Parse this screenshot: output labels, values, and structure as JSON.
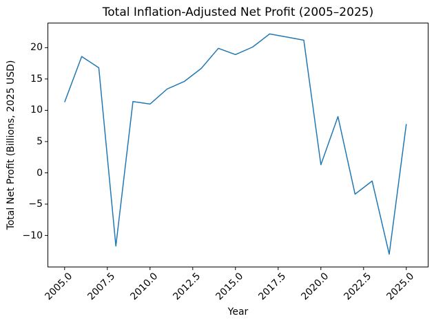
{
  "chart_data": {
    "type": "line",
    "title": "Total Inflation-Adjusted Net Profit (2005–2025)",
    "xlabel": "Year",
    "ylabel": "Total Net Profit (Billions, 2025 USD)",
    "x": [
      2005,
      2006,
      2007,
      2008,
      2009,
      2010,
      2011,
      2012,
      2013,
      2014,
      2015,
      2016,
      2017,
      2018,
      2019,
      2020,
      2021,
      2022,
      2023,
      2024,
      2025
    ],
    "values": [
      11.3,
      18.6,
      16.8,
      -11.7,
      11.4,
      11.0,
      13.4,
      14.6,
      16.7,
      19.9,
      18.9,
      20.1,
      22.2,
      21.7,
      21.2,
      1.3,
      9.0,
      -3.4,
      -1.3,
      -13.0,
      7.8
    ],
    "xlim": [
      2004,
      2026.3
    ],
    "ylim": [
      -15.1,
      24.0
    ],
    "xticks": [
      {
        "value": 2005.0,
        "label": "2005.0"
      },
      {
        "value": 2007.5,
        "label": "2007.5"
      },
      {
        "value": 2010.0,
        "label": "2010.0"
      },
      {
        "value": 2012.5,
        "label": "2012.5"
      },
      {
        "value": 2015.0,
        "label": "2015.0"
      },
      {
        "value": 2017.5,
        "label": "2017.5"
      },
      {
        "value": 2020.0,
        "label": "2020.0"
      },
      {
        "value": 2022.5,
        "label": "2022.5"
      },
      {
        "value": 2025.0,
        "label": "2025.0"
      }
    ],
    "yticks": [
      {
        "value": 20,
        "label": "20"
      },
      {
        "value": 15,
        "label": "15"
      },
      {
        "value": 10,
        "label": "10"
      },
      {
        "value": 5,
        "label": "5"
      },
      {
        "value": 0,
        "label": "0"
      },
      {
        "value": -5,
        "label": "−5"
      },
      {
        "value": -10,
        "label": "−10"
      }
    ],
    "xtick_rotation": 45,
    "grid": false,
    "legend": null,
    "line_color": "#1f77b4",
    "axis_color": "#000000",
    "background_color": "#ffffff"
  }
}
